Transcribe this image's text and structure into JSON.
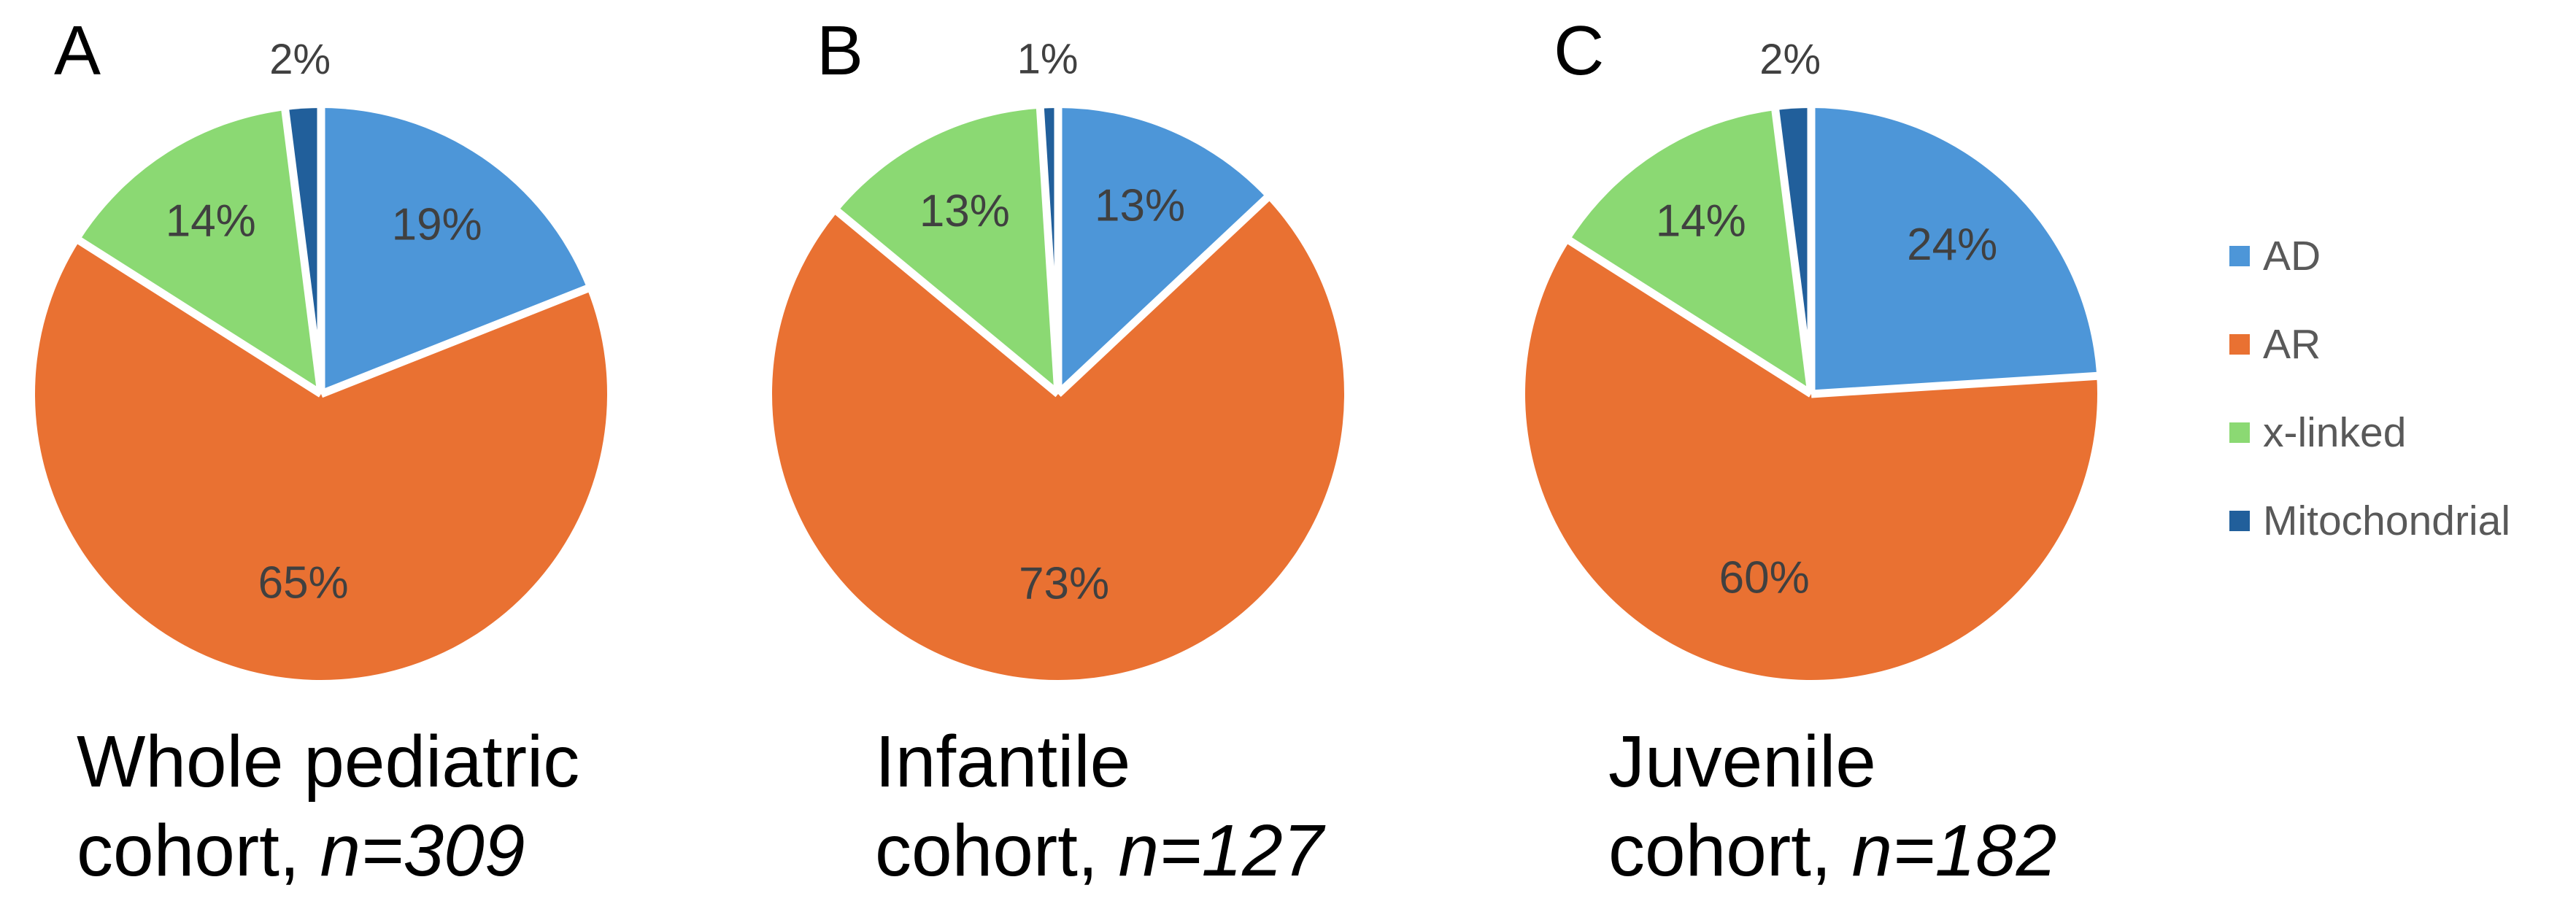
{
  "figure": {
    "background": "#ffffff",
    "percent_label_color": "#404040",
    "title_color": "#000000",
    "legend": {
      "position": "right",
      "text_color": "#595959",
      "items": [
        {
          "label": "AD",
          "color": "#4D96D8"
        },
        {
          "label": "AR",
          "color": "#E97132"
        },
        {
          "label": "x-linked",
          "color": "#8BD973"
        },
        {
          "label": "Mitochondrial",
          "color": "#215F9B"
        }
      ]
    }
  },
  "chart_data": [
    {
      "type": "pie",
      "panel": "A",
      "title": "Whole pediatric cohort, n=309",
      "title_line1": "Whole pediatric",
      "title_line2_prefix": "cohort, ",
      "title_line2_n": "n=309",
      "n": 309,
      "categories": [
        "AD",
        "AR",
        "x-linked",
        "Mitochondrial"
      ],
      "values": [
        19,
        65,
        14,
        2
      ],
      "labels": [
        "19%",
        "65%",
        "14%",
        "2%"
      ],
      "unit": "%",
      "colors": [
        "#4D96D8",
        "#E97132",
        "#8BD973",
        "#215F9B"
      ],
      "start_angle_deg": 0,
      "direction": "clockwise"
    },
    {
      "type": "pie",
      "panel": "B",
      "title": "Infantile cohort, n=127",
      "title_line1": "Infantile",
      "title_line2_prefix": "cohort, ",
      "title_line2_n": "n=127",
      "n": 127,
      "categories": [
        "AD",
        "AR",
        "x-linked",
        "Mitochondrial"
      ],
      "values": [
        13,
        73,
        13,
        1
      ],
      "labels": [
        "13%",
        "73%",
        "13%",
        "1%"
      ],
      "unit": "%",
      "colors": [
        "#4D96D8",
        "#E97132",
        "#8BD973",
        "#215F9B"
      ],
      "start_angle_deg": 0,
      "direction": "clockwise"
    },
    {
      "type": "pie",
      "panel": "C",
      "title": "Juvenile cohort, n=182",
      "title_line1": "Juvenile",
      "title_line2_prefix": "cohort, ",
      "title_line2_n": "n=182",
      "n": 182,
      "categories": [
        "AD",
        "AR",
        "x-linked",
        "Mitochondrial"
      ],
      "values": [
        24,
        60,
        14,
        2
      ],
      "labels": [
        "24%",
        "60%",
        "14%",
        "2%"
      ],
      "unit": "%",
      "colors": [
        "#4D96D8",
        "#E97132",
        "#8BD973",
        "#215F9B"
      ],
      "start_angle_deg": 0,
      "direction": "clockwise"
    }
  ]
}
